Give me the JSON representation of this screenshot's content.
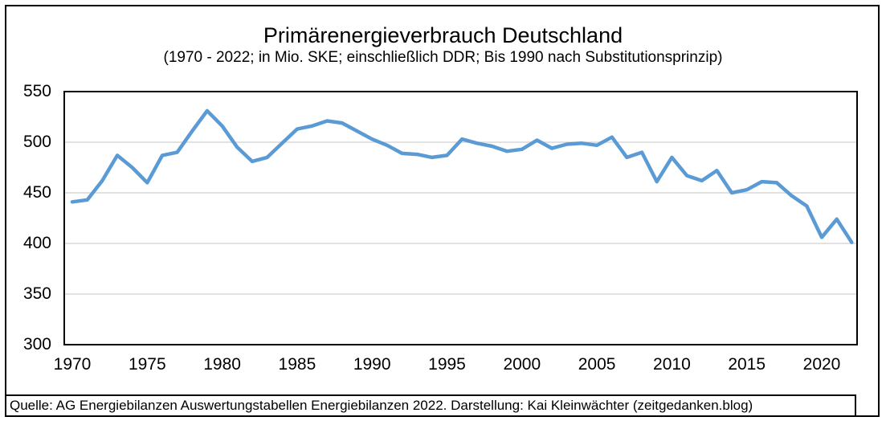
{
  "header": {
    "title": "Primärenergieverbrauch Deutschland",
    "subtitle": "(1970 - 2022; in Mio. SKE; einschließlich DDR; Bis 1990 nach Substitutionsprinzip)"
  },
  "footer": {
    "source": "Quelle: AG Energiebilanzen Auswertungstabellen Energiebilanzen 2022. Darstellung: Kai Kleinwächter (zeitgedanken.blog)"
  },
  "chart_data": {
    "type": "line",
    "title": "Primärenergieverbrauch Deutschland",
    "subtitle": "(1970 - 2022; in Mio. SKE; einschließlich DDR; Bis 1990 nach Substitutionsprinzip)",
    "xlabel": "",
    "ylabel": "",
    "x": [
      1970,
      1971,
      1972,
      1973,
      1974,
      1975,
      1976,
      1977,
      1978,
      1979,
      1980,
      1981,
      1982,
      1983,
      1984,
      1985,
      1986,
      1987,
      1988,
      1989,
      1990,
      1991,
      1992,
      1993,
      1994,
      1995,
      1996,
      1997,
      1998,
      1999,
      2000,
      2001,
      2002,
      2003,
      2004,
      2005,
      2006,
      2007,
      2008,
      2009,
      2010,
      2011,
      2012,
      2013,
      2014,
      2015,
      2016,
      2017,
      2018,
      2019,
      2020,
      2021,
      2022
    ],
    "series": [
      {
        "name": "Primärenergieverbrauch (Mio. SKE)",
        "values": [
          441,
          443,
          462,
          487,
          475,
          460,
          487,
          490,
          511,
          531,
          516,
          495,
          481,
          485,
          499,
          513,
          516,
          521,
          519,
          511,
          503,
          497,
          489,
          488,
          485,
          487,
          503,
          499,
          496,
          491,
          493,
          502,
          494,
          498,
          499,
          497,
          505,
          485,
          490,
          461,
          485,
          467,
          462,
          472,
          450,
          453,
          461,
          460,
          447,
          437,
          406,
          424,
          401
        ]
      }
    ],
    "ylim": [
      300,
      550
    ],
    "yticks": [
      300,
      350,
      400,
      450,
      500,
      550
    ],
    "xticks": [
      1970,
      1975,
      1980,
      1985,
      1990,
      1995,
      2000,
      2005,
      2010,
      2015,
      2020
    ],
    "grid": "horizontal-only",
    "legend": "none",
    "line_color": "#5B9BD5",
    "gridline_color": "#D9D9D9",
    "plot_border_color": "#000000"
  }
}
